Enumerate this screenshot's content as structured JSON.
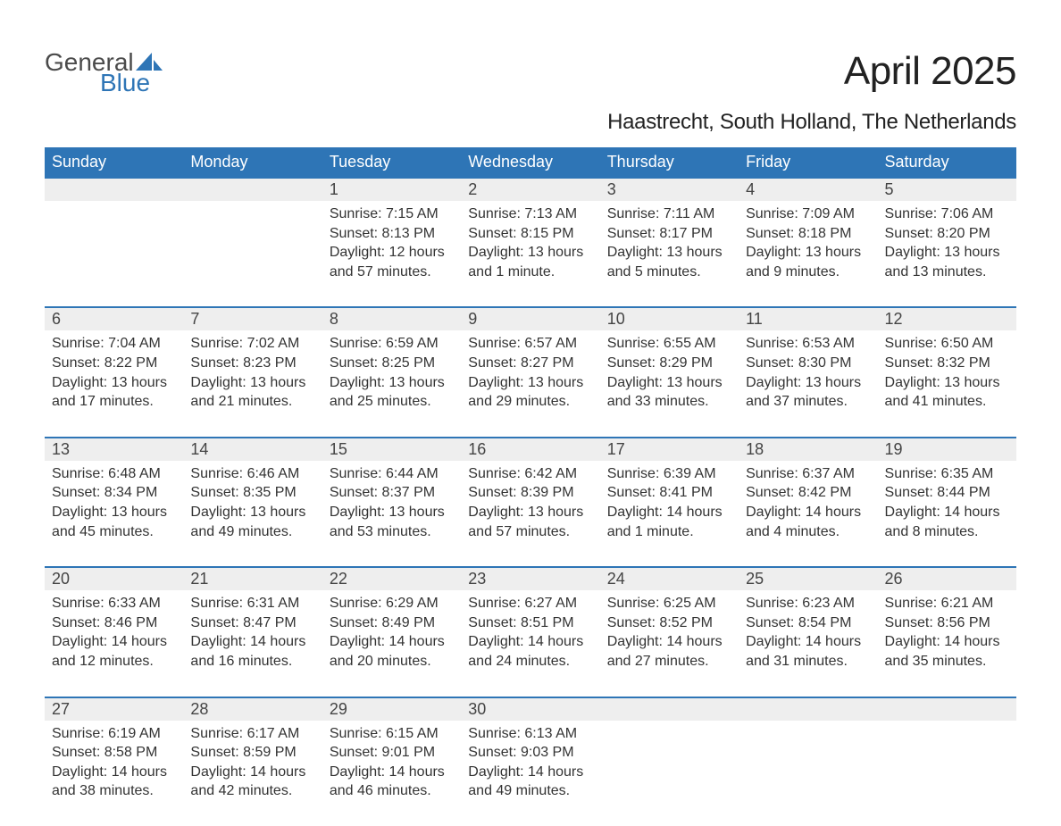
{
  "logo": {
    "word1": "General",
    "word2": "Blue",
    "sail_color": "#2e75b6",
    "text_gray": "#4b4b4b"
  },
  "title": "April 2025",
  "location": "Haastrecht, South Holland, The Netherlands",
  "colors": {
    "header_bg": "#2e75b6",
    "header_text": "#ffffff",
    "daynum_bg": "#eeeeee",
    "row_divider": "#2e75b6",
    "body_text": "#333333",
    "background": "#ffffff"
  },
  "typography": {
    "title_fontsize": 44,
    "location_fontsize": 24,
    "dayheader_fontsize": 18,
    "daynum_fontsize": 18,
    "cell_fontsize": 16,
    "font_family": "Arial, Helvetica, sans-serif"
  },
  "day_headers": [
    "Sunday",
    "Monday",
    "Tuesday",
    "Wednesday",
    "Thursday",
    "Friday",
    "Saturday"
  ],
  "weeks": [
    {
      "nums": [
        "",
        "",
        "1",
        "2",
        "3",
        "4",
        "5"
      ],
      "cells": [
        "",
        "",
        "Sunrise: 7:15 AM\nSunset: 8:13 PM\nDaylight: 12 hours and 57 minutes.",
        "Sunrise: 7:13 AM\nSunset: 8:15 PM\nDaylight: 13 hours and 1 minute.",
        "Sunrise: 7:11 AM\nSunset: 8:17 PM\nDaylight: 13 hours and 5 minutes.",
        "Sunrise: 7:09 AM\nSunset: 8:18 PM\nDaylight: 13 hours and 9 minutes.",
        "Sunrise: 7:06 AM\nSunset: 8:20 PM\nDaylight: 13 hours and 13 minutes."
      ]
    },
    {
      "nums": [
        "6",
        "7",
        "8",
        "9",
        "10",
        "11",
        "12"
      ],
      "cells": [
        "Sunrise: 7:04 AM\nSunset: 8:22 PM\nDaylight: 13 hours and 17 minutes.",
        "Sunrise: 7:02 AM\nSunset: 8:23 PM\nDaylight: 13 hours and 21 minutes.",
        "Sunrise: 6:59 AM\nSunset: 8:25 PM\nDaylight: 13 hours and 25 minutes.",
        "Sunrise: 6:57 AM\nSunset: 8:27 PM\nDaylight: 13 hours and 29 minutes.",
        "Sunrise: 6:55 AM\nSunset: 8:29 PM\nDaylight: 13 hours and 33 minutes.",
        "Sunrise: 6:53 AM\nSunset: 8:30 PM\nDaylight: 13 hours and 37 minutes.",
        "Sunrise: 6:50 AM\nSunset: 8:32 PM\nDaylight: 13 hours and 41 minutes."
      ]
    },
    {
      "nums": [
        "13",
        "14",
        "15",
        "16",
        "17",
        "18",
        "19"
      ],
      "cells": [
        "Sunrise: 6:48 AM\nSunset: 8:34 PM\nDaylight: 13 hours and 45 minutes.",
        "Sunrise: 6:46 AM\nSunset: 8:35 PM\nDaylight: 13 hours and 49 minutes.",
        "Sunrise: 6:44 AM\nSunset: 8:37 PM\nDaylight: 13 hours and 53 minutes.",
        "Sunrise: 6:42 AM\nSunset: 8:39 PM\nDaylight: 13 hours and 57 minutes.",
        "Sunrise: 6:39 AM\nSunset: 8:41 PM\nDaylight: 14 hours and 1 minute.",
        "Sunrise: 6:37 AM\nSunset: 8:42 PM\nDaylight: 14 hours and 4 minutes.",
        "Sunrise: 6:35 AM\nSunset: 8:44 PM\nDaylight: 14 hours and 8 minutes."
      ]
    },
    {
      "nums": [
        "20",
        "21",
        "22",
        "23",
        "24",
        "25",
        "26"
      ],
      "cells": [
        "Sunrise: 6:33 AM\nSunset: 8:46 PM\nDaylight: 14 hours and 12 minutes.",
        "Sunrise: 6:31 AM\nSunset: 8:47 PM\nDaylight: 14 hours and 16 minutes.",
        "Sunrise: 6:29 AM\nSunset: 8:49 PM\nDaylight: 14 hours and 20 minutes.",
        "Sunrise: 6:27 AM\nSunset: 8:51 PM\nDaylight: 14 hours and 24 minutes.",
        "Sunrise: 6:25 AM\nSunset: 8:52 PM\nDaylight: 14 hours and 27 minutes.",
        "Sunrise: 6:23 AM\nSunset: 8:54 PM\nDaylight: 14 hours and 31 minutes.",
        "Sunrise: 6:21 AM\nSunset: 8:56 PM\nDaylight: 14 hours and 35 minutes."
      ]
    },
    {
      "nums": [
        "27",
        "28",
        "29",
        "30",
        "",
        "",
        ""
      ],
      "cells": [
        "Sunrise: 6:19 AM\nSunset: 8:58 PM\nDaylight: 14 hours and 38 minutes.",
        "Sunrise: 6:17 AM\nSunset: 8:59 PM\nDaylight: 14 hours and 42 minutes.",
        "Sunrise: 6:15 AM\nSunset: 9:01 PM\nDaylight: 14 hours and 46 minutes.",
        "Sunrise: 6:13 AM\nSunset: 9:03 PM\nDaylight: 14 hours and 49 minutes.",
        "",
        "",
        ""
      ]
    }
  ]
}
